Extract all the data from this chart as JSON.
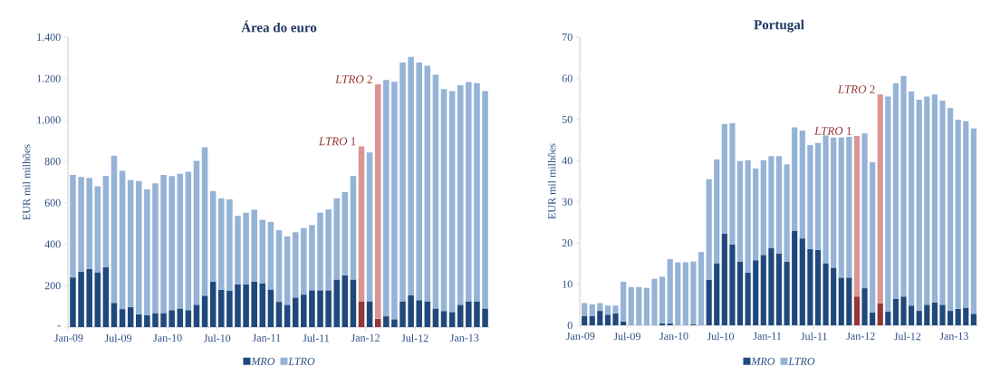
{
  "chart_data": [
    {
      "type": "bar",
      "stacked": true,
      "title": "Área do euro",
      "ylabel": "EUR mil milhões",
      "legend": "bottom",
      "categories": [
        "Jan-09",
        null,
        null,
        null,
        null,
        null,
        "Jul-09",
        null,
        null,
        null,
        null,
        null,
        "Jan-10",
        null,
        null,
        null,
        null,
        null,
        "Jul-10",
        null,
        null,
        null,
        null,
        null,
        "Jan-11",
        null,
        null,
        null,
        null,
        null,
        "Jul-11",
        null,
        null,
        null,
        null,
        null,
        "Jan-12",
        null,
        null,
        null,
        null,
        null,
        "Jul-12",
        null,
        null,
        null,
        null,
        null,
        "Jan-13",
        null,
        null
      ],
      "ylim": [
        0,
        1400
      ],
      "yticks": [
        {
          "value": 0,
          "label": "-"
        },
        200,
        400,
        600,
        800,
        {
          "value": 1000,
          "label": "1.000"
        },
        {
          "value": 1200,
          "label": "1.200"
        },
        {
          "value": 1400,
          "label": "1.400"
        }
      ],
      "series": [
        {
          "name": "MRO",
          "color": "#1f497d",
          "values": [
            240,
            268,
            280,
            265,
            290,
            117,
            87,
            97,
            62,
            57,
            68,
            68,
            82,
            90,
            82,
            108,
            152,
            220,
            180,
            177,
            207,
            207,
            220,
            212,
            182,
            122,
            108,
            143,
            157,
            178,
            178,
            178,
            230,
            250,
            230,
            125,
            125,
            40,
            52,
            38,
            125,
            155,
            130,
            125,
            90,
            78,
            73,
            108,
            125,
            125,
            90
          ],
          "colors": [
            "#1f497d",
            "#1f497d",
            "#1f497d",
            "#1f497d",
            "#1f497d",
            "#1f497d",
            "#1f497d",
            "#1f497d",
            "#1f497d",
            "#1f497d",
            "#1f497d",
            "#1f497d",
            "#1f497d",
            "#1f497d",
            "#1f497d",
            "#1f497d",
            "#1f497d",
            "#1f497d",
            "#1f497d",
            "#1f497d",
            "#1f497d",
            "#1f497d",
            "#1f497d",
            "#1f497d",
            "#1f497d",
            "#1f497d",
            "#1f497d",
            "#1f497d",
            "#1f497d",
            "#1f497d",
            "#1f497d",
            "#1f497d",
            "#1f497d",
            "#1f497d",
            "#1f497d",
            "#953735",
            "#1f497d",
            "#953735",
            "#1f497d",
            "#1f497d",
            "#1f497d",
            "#1f497d",
            "#1f497d",
            "#1f497d",
            "#1f497d",
            "#1f497d",
            "#1f497d",
            "#1f497d",
            "#1f497d",
            "#1f497d",
            "#1f497d"
          ]
        },
        {
          "name": "LTRO",
          "color": "#95b3d7",
          "values": [
            495,
            457,
            440,
            415,
            440,
            711,
            668,
            613,
            643,
            608,
            627,
            667,
            648,
            650,
            668,
            695,
            716,
            437,
            442,
            440,
            330,
            345,
            347,
            306,
            326,
            346,
            330,
            315,
            321,
            315,
            375,
            390,
            392,
            402,
            500,
            748,
            718,
            1132,
            1141,
            1147,
            1152,
            1150,
            1147,
            1137,
            1128,
            1072,
            1067,
            1060,
            1058,
            1053,
            1050
          ],
          "colors": [
            "#95b3d7",
            "#95b3d7",
            "#95b3d7",
            "#95b3d7",
            "#95b3d7",
            "#95b3d7",
            "#95b3d7",
            "#95b3d7",
            "#95b3d7",
            "#95b3d7",
            "#95b3d7",
            "#95b3d7",
            "#95b3d7",
            "#95b3d7",
            "#95b3d7",
            "#95b3d7",
            "#95b3d7",
            "#95b3d7",
            "#95b3d7",
            "#95b3d7",
            "#95b3d7",
            "#95b3d7",
            "#95b3d7",
            "#95b3d7",
            "#95b3d7",
            "#95b3d7",
            "#95b3d7",
            "#95b3d7",
            "#95b3d7",
            "#95b3d7",
            "#95b3d7",
            "#95b3d7",
            "#95b3d7",
            "#95b3d7",
            "#95b3d7",
            "#d99694",
            "#95b3d7",
            "#d99694",
            "#95b3d7",
            "#95b3d7",
            "#95b3d7",
            "#95b3d7",
            "#95b3d7",
            "#95b3d7",
            "#95b3d7",
            "#95b3d7",
            "#95b3d7",
            "#95b3d7",
            "#95b3d7",
            "#95b3d7",
            "#95b3d7"
          ]
        }
      ],
      "annotations": [
        "*LTRO* 1",
        "*LTRO* 2"
      ]
    },
    {
      "type": "bar",
      "stacked": true,
      "title": "Portugal",
      "ylabel": "EUR mil milhões",
      "legend": "bottom",
      "categories": [
        "Jan-09",
        null,
        null,
        null,
        null,
        null,
        "Jul-09",
        null,
        null,
        null,
        null,
        null,
        "Jan-10",
        null,
        null,
        null,
        null,
        null,
        "Jul-10",
        null,
        null,
        null,
        null,
        null,
        "Jan-11",
        null,
        null,
        null,
        null,
        null,
        "Jul-11",
        null,
        null,
        null,
        null,
        null,
        "Jan-12",
        null,
        null,
        null,
        null,
        null,
        "Jul-12",
        null,
        null,
        null,
        null,
        null,
        "Jan-13",
        null,
        null
      ],
      "ylim": [
        0,
        70
      ],
      "yticks": [
        0,
        10,
        20,
        30,
        40,
        50,
        60,
        70
      ],
      "series": [
        {
          "name": "MRO",
          "color": "#1f497d",
          "values": [
            2.3,
            2.3,
            3.5,
            2.6,
            2.9,
            0.9,
            0,
            0,
            0,
            0,
            0.5,
            0.5,
            0,
            0,
            0.2,
            0,
            11.0,
            15.1,
            22.3,
            19.7,
            15.5,
            12.8,
            15.8,
            17.1,
            18.8,
            17.5,
            15.5,
            23.0,
            21.1,
            18.5,
            18.3,
            15.1,
            14.0,
            11.6,
            11.6,
            7.0,
            9.0,
            3.1,
            5.3,
            3.3,
            6.4,
            7.0,
            4.8,
            3.5,
            5.0,
            5.5,
            5.0,
            3.5,
            4.0,
            4.3,
            2.8
          ],
          "colors": [
            "#1f497d",
            "#1f497d",
            "#1f497d",
            "#1f497d",
            "#1f497d",
            "#1f497d",
            "#1f497d",
            "#1f497d",
            "#1f497d",
            "#1f497d",
            "#1f497d",
            "#1f497d",
            "#1f497d",
            "#1f497d",
            "#1f497d",
            "#1f497d",
            "#1f497d",
            "#1f497d",
            "#1f497d",
            "#1f497d",
            "#1f497d",
            "#1f497d",
            "#1f497d",
            "#1f497d",
            "#1f497d",
            "#1f497d",
            "#1f497d",
            "#1f497d",
            "#1f497d",
            "#1f497d",
            "#1f497d",
            "#1f497d",
            "#1f497d",
            "#1f497d",
            "#1f497d",
            "#953735",
            "#1f497d",
            "#1f497d",
            "#953735",
            "#1f497d",
            "#1f497d",
            "#1f497d",
            "#1f497d",
            "#1f497d",
            "#1f497d",
            "#1f497d",
            "#1f497d",
            "#1f497d",
            "#1f497d",
            "#1f497d",
            "#1f497d"
          ]
        },
        {
          "name": "LTRO",
          "color": "#95b3d7",
          "values": [
            3.1,
            2.8,
            1.9,
            2.2,
            1.9,
            9.7,
            9.3,
            9.3,
            9.1,
            11.3,
            11.3,
            15.6,
            15.3,
            15.3,
            15.3,
            17.8,
            24.5,
            25.2,
            26.6,
            29.4,
            24.4,
            27.3,
            22.3,
            23.0,
            22.3,
            23.6,
            23.6,
            25.1,
            26.2,
            25.3,
            26.0,
            31.0,
            31.6,
            34.0,
            34.2,
            39.0,
            37.6,
            36.5,
            50.8,
            52.3,
            52.4,
            53.6,
            52.0,
            51.3,
            50.6,
            50.6,
            49.6,
            49.3,
            45.9,
            45.3,
            45.0
          ],
          "colors": [
            "#95b3d7",
            "#95b3d7",
            "#95b3d7",
            "#95b3d7",
            "#95b3d7",
            "#95b3d7",
            "#95b3d7",
            "#95b3d7",
            "#95b3d7",
            "#95b3d7",
            "#95b3d7",
            "#95b3d7",
            "#95b3d7",
            "#95b3d7",
            "#95b3d7",
            "#95b3d7",
            "#95b3d7",
            "#95b3d7",
            "#95b3d7",
            "#95b3d7",
            "#95b3d7",
            "#95b3d7",
            "#95b3d7",
            "#95b3d7",
            "#95b3d7",
            "#95b3d7",
            "#95b3d7",
            "#95b3d7",
            "#95b3d7",
            "#95b3d7",
            "#95b3d7",
            "#95b3d7",
            "#95b3d7",
            "#95b3d7",
            "#95b3d7",
            "#d99694",
            "#95b3d7",
            "#95b3d7",
            "#d99694",
            "#95b3d7",
            "#95b3d7",
            "#95b3d7",
            "#95b3d7",
            "#95b3d7",
            "#95b3d7",
            "#95b3d7",
            "#95b3d7",
            "#95b3d7",
            "#95b3d7",
            "#95b3d7",
            "#95b3d7"
          ]
        }
      ],
      "annotations": [
        "*LTRO* 1",
        "*LTRO* 2"
      ]
    }
  ]
}
